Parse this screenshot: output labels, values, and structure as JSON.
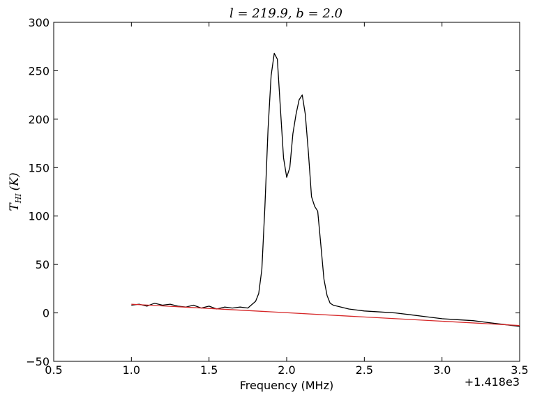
{
  "chart_data": {
    "type": "line",
    "title": "l = 219.9, b = 2.0",
    "title_parts": {
      "l_var": "l",
      "l_value": "219.9",
      "b_var": "b",
      "b_value": "2.0"
    },
    "xlabel": "Frequency (MHz)",
    "ylabel": "T_HI (K)",
    "ylabel_parts": {
      "symbol": "T",
      "subscript": "HI",
      "unit": "(K)"
    },
    "x_offset_label": "+1.418e3",
    "xlim": [
      0.5,
      3.5
    ],
    "ylim": [
      -50,
      300
    ],
    "x_ticks": [
      0.5,
      1.0,
      1.5,
      2.0,
      2.5,
      3.0,
      3.5
    ],
    "x_tick_labels": [
      "0.5",
      "1.0",
      "1.5",
      "2.0",
      "2.5",
      "3.0",
      "3.5"
    ],
    "y_ticks": [
      -50,
      0,
      50,
      100,
      150,
      200,
      250,
      300
    ],
    "y_tick_labels": [
      "−50",
      "0",
      "50",
      "100",
      "150",
      "200",
      "250",
      "300"
    ],
    "grid": false,
    "series": [
      {
        "color": "#000000",
        "x": [
          1.0,
          1.05,
          1.1,
          1.15,
          1.2,
          1.25,
          1.3,
          1.35,
          1.4,
          1.45,
          1.5,
          1.55,
          1.6,
          1.65,
          1.7,
          1.75,
          1.8,
          1.82,
          1.84,
          1.86,
          1.88,
          1.9,
          1.92,
          1.94,
          1.96,
          1.98,
          2.0,
          2.02,
          2.04,
          2.06,
          2.08,
          2.1,
          2.12,
          2.14,
          2.16,
          2.18,
          2.2,
          2.22,
          2.24,
          2.26,
          2.28,
          2.3,
          2.35,
          2.4,
          2.5,
          2.6,
          2.7,
          2.8,
          2.9,
          3.0,
          3.1,
          3.2,
          3.3,
          3.4,
          3.5
        ],
        "y": [
          8,
          9,
          7,
          10,
          8,
          9,
          7,
          6,
          8,
          5,
          7,
          4,
          6,
          5,
          6,
          5,
          12,
          20,
          45,
          110,
          190,
          245,
          268,
          262,
          210,
          160,
          140,
          150,
          185,
          205,
          220,
          225,
          205,
          165,
          120,
          110,
          105,
          70,
          35,
          18,
          10,
          8,
          6,
          4,
          2,
          1,
          0,
          -2,
          -4,
          -6,
          -7,
          -8,
          -10,
          -12,
          -14
        ]
      },
      {
        "color": "#d62728",
        "x": [
          1.0,
          3.5
        ],
        "y": [
          9,
          -13
        ]
      }
    ]
  }
}
